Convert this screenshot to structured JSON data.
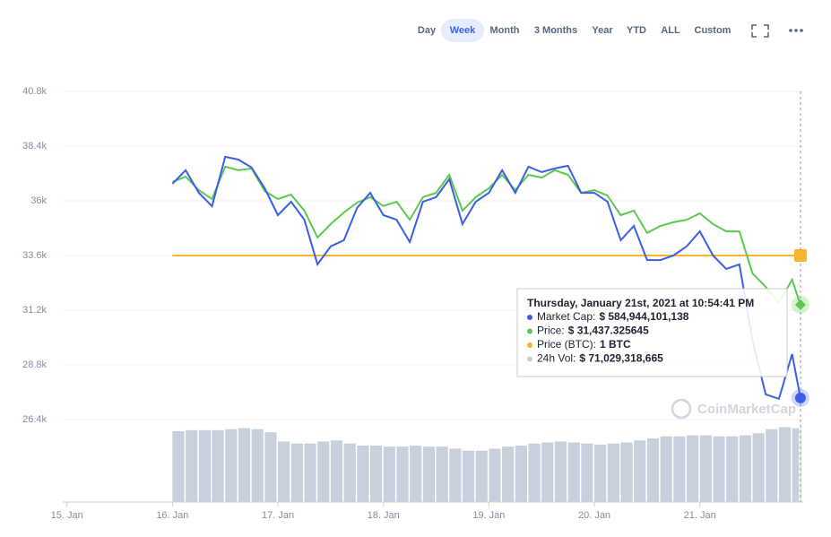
{
  "toolbar": {
    "buttons": [
      "Day",
      "Week",
      "Month",
      "3 Months",
      "Year",
      "YTD",
      "ALL",
      "Custom"
    ],
    "active": 1
  },
  "watermark": "CoinMarketCap",
  "tooltip": {
    "title": "Thursday, January 21st, 2021 at 10:54:41 PM",
    "rows": [
      {
        "label": "Market Cap:",
        "value": "$ 584,944,101,138",
        "color": "#3b5de7"
      },
      {
        "label": "Price:",
        "value": "$ 31,437.325645",
        "color": "#5bc84f"
      },
      {
        "label": "Price (BTC):",
        "value": "1 BTC",
        "color": "#f5b431"
      },
      {
        "label": "24h Vol:",
        "value": "$ 71,029,318,665",
        "color": "#c9d0dd"
      }
    ]
  },
  "chart_data": {
    "type": "line",
    "x": [
      16,
      16.125,
      16.25,
      16.375,
      16.5,
      16.625,
      16.75,
      16.875,
      17,
      17.125,
      17.25,
      17.375,
      17.5,
      17.625,
      17.75,
      17.875,
      18,
      18.125,
      18.25,
      18.375,
      18.5,
      18.625,
      18.75,
      18.875,
      19,
      19.125,
      19.25,
      19.375,
      19.5,
      19.625,
      19.75,
      19.875,
      20,
      20.125,
      20.25,
      20.375,
      20.5,
      20.625,
      20.75,
      20.875,
      21,
      21.125,
      21.25,
      21.375,
      21.5,
      21.625,
      21.75,
      21.875,
      21.954
    ],
    "series": [
      {
        "color": "#3b5de7",
        "values": [
          36750,
          37340,
          36350,
          35760,
          37930,
          37810,
          37460,
          36550,
          35370,
          35960,
          35170,
          33210,
          34000,
          34270,
          35690,
          36350,
          35370,
          35170,
          34190,
          35960,
          36160,
          36950,
          34980,
          35960,
          36350,
          37340,
          36350,
          37500,
          37260,
          37420,
          37540,
          36350,
          36350,
          35960,
          34270,
          34900,
          33400,
          33400,
          33600,
          34000,
          34660,
          33600,
          33010,
          33210,
          29860,
          27500,
          27310,
          29270,
          27350
        ]
      },
      {
        "color": "#5bc84f",
        "values": [
          36830,
          37060,
          36470,
          36080,
          37500,
          37340,
          37420,
          36430,
          36080,
          36270,
          35570,
          34390,
          34980,
          35490,
          35920,
          36160,
          35770,
          35960,
          35170,
          36160,
          36350,
          37140,
          35570,
          36160,
          36550,
          37140,
          36470,
          37140,
          37020,
          37340,
          37140,
          36350,
          36470,
          36230,
          35370,
          35570,
          34590,
          34900,
          35060,
          35170,
          35450,
          34980,
          34660,
          34660,
          32810,
          32220,
          31520,
          32540,
          31440
        ]
      },
      {
        "color": "#f5b431",
        "values": [
          33600,
          33600,
          33600,
          33600,
          33600,
          33600,
          33600,
          33600,
          33600,
          33600,
          33600,
          33600,
          33600,
          33600,
          33600,
          33600,
          33600,
          33600,
          33600,
          33600,
          33600,
          33600,
          33600,
          33600,
          33600,
          33600,
          33600,
          33600,
          33600,
          33600,
          33600,
          33600,
          33600,
          33600,
          33600,
          33600,
          33600,
          33600,
          33600,
          33600,
          33600,
          33600,
          33600,
          33600,
          33600,
          33600,
          33600,
          33600,
          33600
        ]
      }
    ],
    "volume": {
      "color": "#c9d0dd",
      "values": [
        69000000000,
        70000000000,
        70000000000,
        70000000000,
        71000000000,
        72000000000,
        71000000000,
        68000000000,
        59000000000,
        57000000000,
        57000000000,
        59000000000,
        60000000000,
        57000000000,
        55000000000,
        55000000000,
        54000000000,
        54000000000,
        55000000000,
        54000000000,
        54000000000,
        52000000000,
        50000000000,
        50000000000,
        52000000000,
        54000000000,
        55000000000,
        57000000000,
        58000000000,
        59000000000,
        58000000000,
        57000000000,
        56000000000,
        57000000000,
        58000000000,
        60000000000,
        62000000000,
        64000000000,
        64000000000,
        65000000000,
        65000000000,
        64000000000,
        64000000000,
        65000000000,
        67000000000,
        71000000000,
        73000000000,
        72000000000,
        71029318665
      ],
      "ylim": [
        0,
        400000000000
      ]
    },
    "xlim": [
      14.96,
      21.98
    ],
    "xticks": [
      {
        "value": 15,
        "label": "15. Jan"
      },
      {
        "value": 16,
        "label": "16. Jan"
      },
      {
        "value": 17,
        "label": "17. Jan"
      },
      {
        "value": 18,
        "label": "18. Jan"
      },
      {
        "value": 19,
        "label": "19. Jan"
      },
      {
        "value": 20,
        "label": "20. Jan"
      },
      {
        "value": 21,
        "label": "21. Jan"
      }
    ],
    "ylim": [
      22780,
      40800
    ],
    "yticks": [
      {
        "value": 26400,
        "label": "26.4k"
      },
      {
        "value": 28800,
        "label": "28.8k"
      },
      {
        "value": 31200,
        "label": "31.2k"
      },
      {
        "value": 33600,
        "label": "33.6k"
      },
      {
        "value": 36000,
        "label": "36k"
      },
      {
        "value": 38400,
        "label": "38.4k"
      },
      {
        "value": 40800,
        "label": "40.8k"
      }
    ],
    "grid": true
  }
}
